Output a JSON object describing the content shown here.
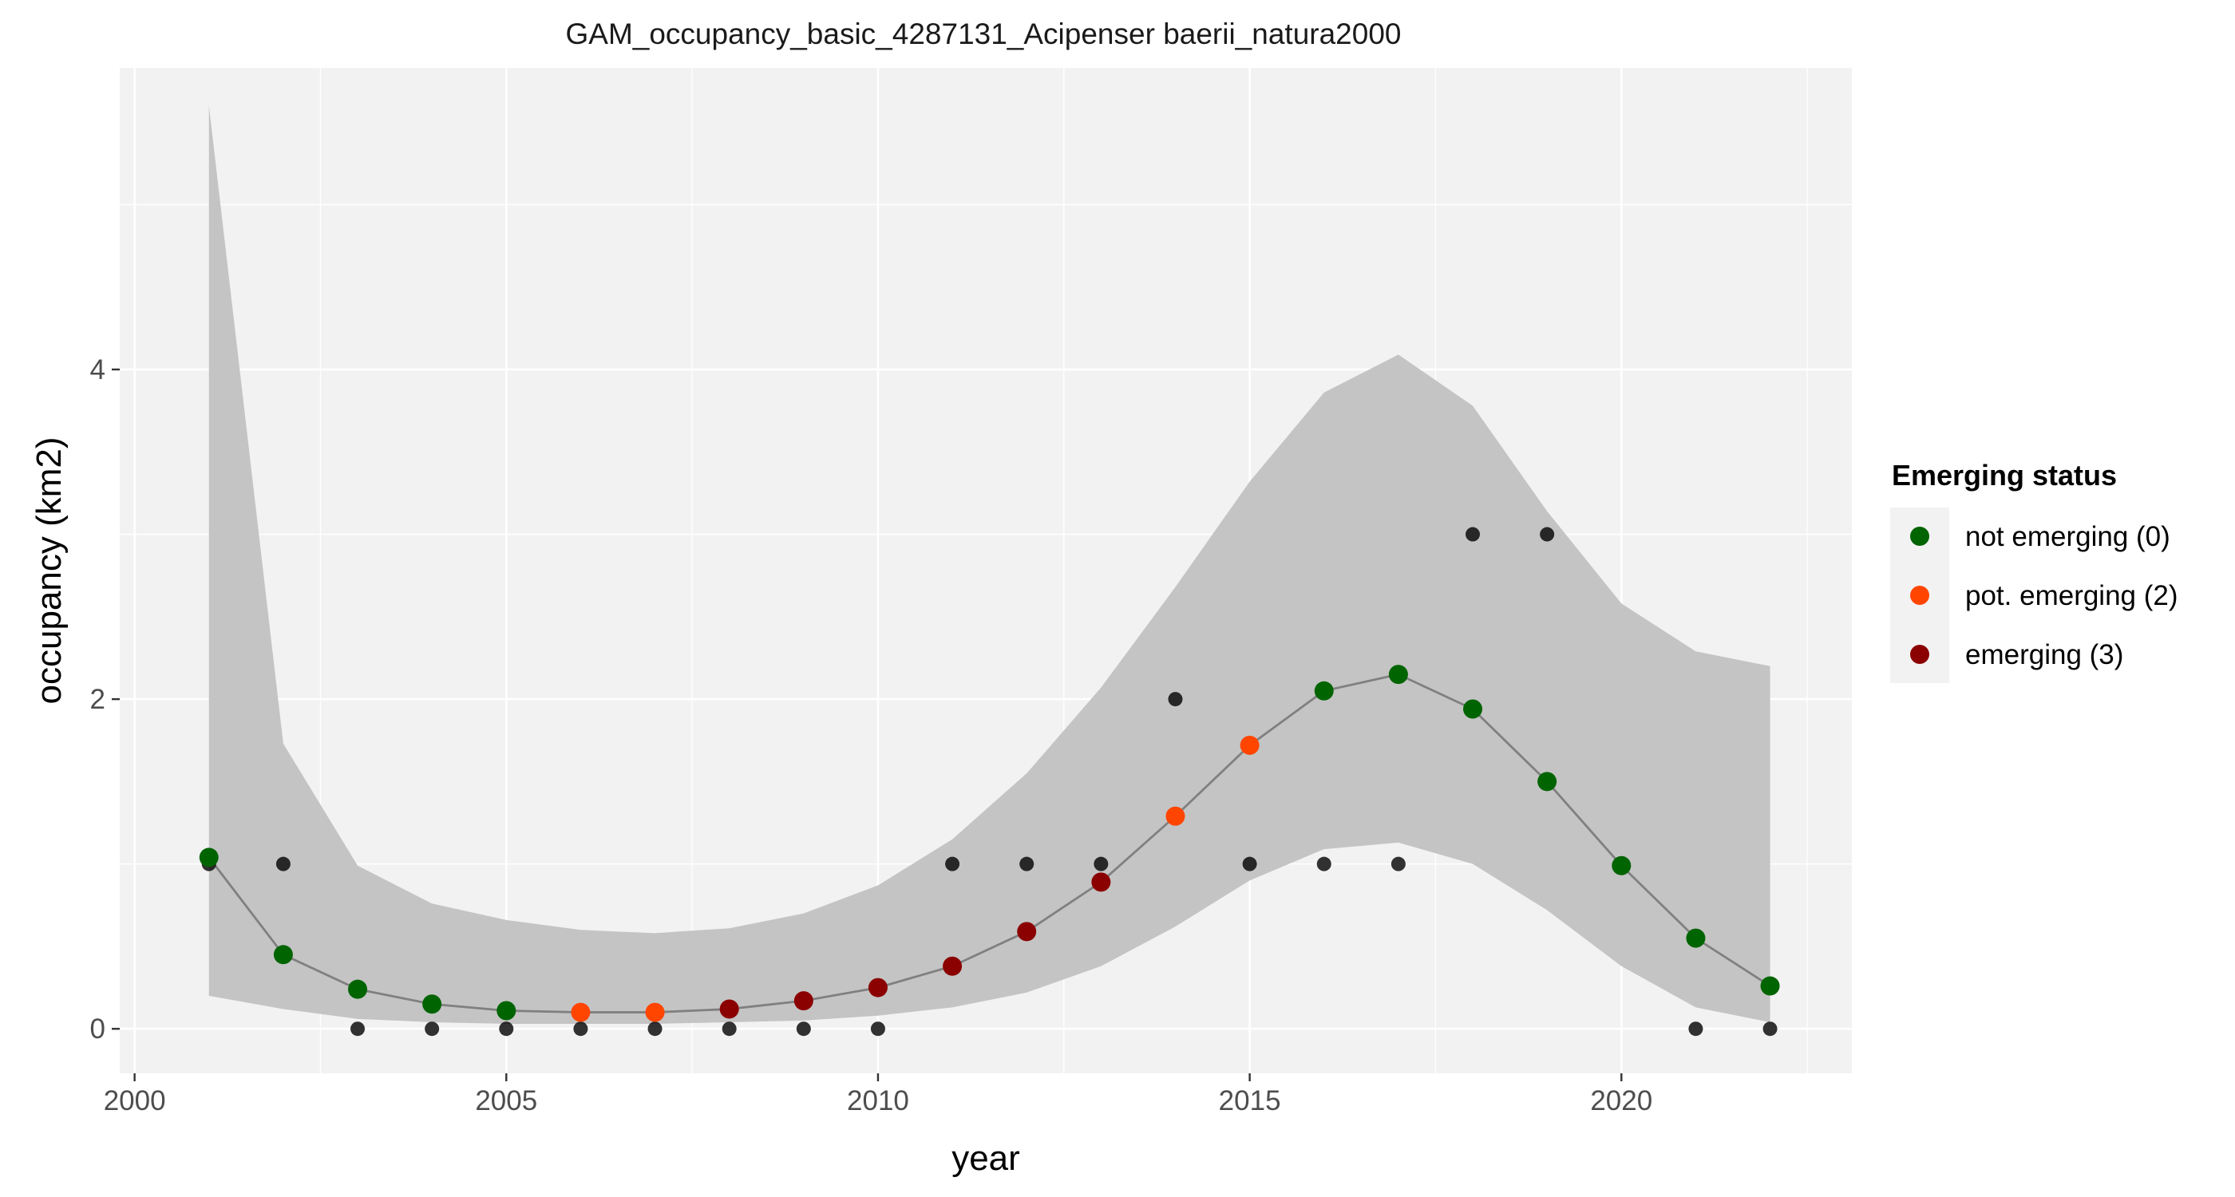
{
  "chart_data": {
    "type": "line",
    "title": "GAM_occupancy_basic_4287131_Acipenser baerii_natura2000",
    "xlabel": "year",
    "ylabel": "occupancy (km2)",
    "xlim": [
      1999.8,
      2023.1
    ],
    "ylim": [
      -0.27,
      5.83
    ],
    "x_ticks": [
      2000,
      2005,
      2010,
      2015,
      2020
    ],
    "x_tick_labels": [
      "2000",
      "2005",
      "2010",
      "2015",
      "2020"
    ],
    "y_ticks": [
      0,
      2,
      4
    ],
    "y_tick_labels": [
      "0",
      "2",
      "4"
    ],
    "grid": true,
    "legend": {
      "title": "Emerging status",
      "position": "right",
      "entries": [
        {
          "label": "not emerging (0)",
          "color": "#006400"
        },
        {
          "label": "pot. emerging (2)",
          "color": "#FF4500"
        },
        {
          "label": "emerging (3)",
          "color": "#8B0000"
        }
      ]
    },
    "colors": {
      "panel": "#F2F2F2",
      "ribbon": "#C4C4C4",
      "line": "#808080",
      "observed": "#000000",
      "not_emerging": "#006400",
      "pot_emerging": "#FF4500",
      "emerging": "#8B0000"
    },
    "years": [
      2001,
      2002,
      2003,
      2004,
      2005,
      2006,
      2007,
      2008,
      2009,
      2010,
      2011,
      2012,
      2013,
      2014,
      2015,
      2016,
      2017,
      2018,
      2019,
      2020,
      2021,
      2022
    ],
    "fit": [
      1.04,
      0.45,
      0.24,
      0.15,
      0.11,
      0.1,
      0.1,
      0.12,
      0.17,
      0.25,
      0.38,
      0.59,
      0.89,
      1.29,
      1.72,
      2.05,
      2.15,
      1.94,
      1.5,
      0.99,
      0.55,
      0.26
    ],
    "lower": [
      0.2,
      0.12,
      0.06,
      0.04,
      0.03,
      0.03,
      0.03,
      0.04,
      0.05,
      0.08,
      0.13,
      0.22,
      0.38,
      0.62,
      0.9,
      1.09,
      1.13,
      1.0,
      0.72,
      0.38,
      0.13,
      0.04
    ],
    "upper": [
      5.6,
      1.73,
      0.99,
      0.76,
      0.66,
      0.6,
      0.58,
      0.61,
      0.7,
      0.87,
      1.15,
      1.55,
      2.07,
      2.68,
      3.32,
      3.86,
      4.09,
      3.78,
      3.14,
      2.58,
      2.29,
      2.2
    ],
    "status": [
      0,
      0,
      0,
      0,
      0,
      2,
      2,
      3,
      3,
      3,
      3,
      3,
      3,
      2,
      2,
      0,
      0,
      0,
      0,
      0,
      0,
      0
    ],
    "observed": [
      1,
      1,
      0,
      0,
      0,
      0,
      0,
      0,
      0,
      0,
      1,
      1,
      1,
      2,
      1,
      1,
      1,
      3,
      3,
      1,
      0,
      0
    ]
  }
}
